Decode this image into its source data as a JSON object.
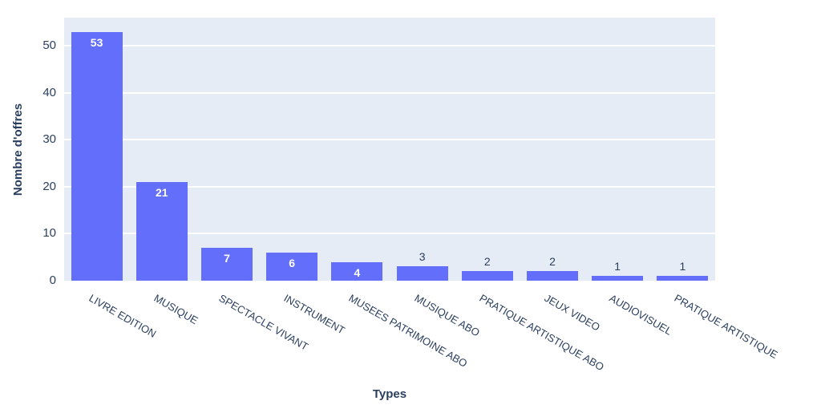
{
  "page": {
    "background": "#ffffff"
  },
  "chart_data": {
    "type": "bar",
    "title": "",
    "xlabel": "Types",
    "ylabel": "Nombre d'offres",
    "categories": [
      "LIVRE EDITION",
      "MUSIQUE",
      "SPECTACLE VIVANT",
      "INSTRUMENT",
      "MUSEES PATRIMOINE ABO",
      "MUSIQUE ABO",
      "PRATIQUE ARTISTIQUE ABO",
      "JEUX VIDEO",
      "AUDIOVISUEL",
      "PRATIQUE ARTISTIQUE"
    ],
    "values": [
      53,
      21,
      7,
      6,
      4,
      3,
      2,
      2,
      1,
      1
    ],
    "bar_value_labels": [
      "53",
      "21",
      "7",
      "6",
      "4",
      "3",
      "2",
      "2",
      "1",
      "1"
    ],
    "ylim": [
      0,
      56
    ],
    "yticks": [
      0,
      10,
      20,
      30,
      40,
      50
    ],
    "grid": true,
    "legend_position": "none",
    "x_tick_angle_deg": 30,
    "colors": {
      "bar": "#636EFA",
      "plot_bg": "#E5ECF6",
      "grid": "#FFFFFF",
      "text": "#2A3F5F",
      "bar_label_inside": "#FFFFFF"
    }
  }
}
